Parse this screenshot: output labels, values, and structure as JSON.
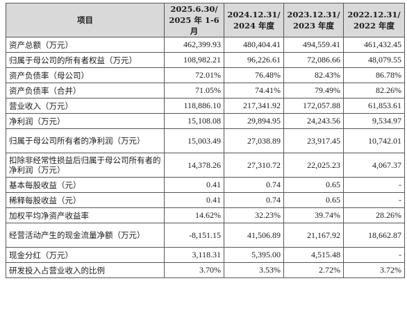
{
  "table": {
    "headers": [
      [
        "项目"
      ],
      [
        "2025.6.30/",
        "2025 年 1-6 月"
      ],
      [
        "2024.12.31/",
        "2024 年度"
      ],
      [
        "2023.12.31/",
        "2023 年度"
      ],
      [
        "2022.12.31/",
        "2022 年度"
      ]
    ],
    "rows": [
      {
        "label": "资产总额（万元）",
        "values": [
          "462,399.93",
          "480,404.41",
          "494,559.41",
          "461,432.45"
        ]
      },
      {
        "label": "归属于母公司的所有者权益（万元）",
        "values": [
          "108,982.21",
          "96,226.61",
          "72,086.66",
          "48,079.55"
        ]
      },
      {
        "label": "资产负债率（母公司）",
        "values": [
          "72.01%",
          "76.48%",
          "82.43%",
          "86.78%"
        ]
      },
      {
        "label": "资产负债率（合并）",
        "values": [
          "71.05%",
          "74.41%",
          "79.49%",
          "82.26%"
        ]
      },
      {
        "label": "营业收入（万元）",
        "values": [
          "118,886.10",
          "217,341.92",
          "172,057.88",
          "61,853.61"
        ]
      },
      {
        "label": "净利润（万元）",
        "values": [
          "15,108.08",
          "29,894.95",
          "24,243.56",
          "9,534.97"
        ]
      },
      {
        "label": "归属于母公司所有者的净利润（万元）",
        "values": [
          "15,003.49",
          "27,038.89",
          "23,917.45",
          "10,742.01"
        ]
      },
      {
        "label": "扣除非经常性损益后归属于母公司所有者的净利润（万元）",
        "values": [
          "14,378.26",
          "27,310.72",
          "22,025.23",
          "4,067.37"
        ]
      },
      {
        "label": "基本每股收益（元）",
        "values": [
          "0.41",
          "0.74",
          "0.65",
          "-"
        ]
      },
      {
        "label": "稀释每股收益（元）",
        "values": [
          "0.41",
          "0.74",
          "0.65",
          "-"
        ]
      },
      {
        "label": "加权平均净资产收益率",
        "values": [
          "14.62%",
          "32.23%",
          "39.74%",
          "28.26%"
        ]
      },
      {
        "label": "经营活动产生的现金流量净额（万元）",
        "values": [
          "-8,151.15",
          "41,506.89",
          "21,167.92",
          "18,662.87"
        ]
      },
      {
        "label": "现金分红（万元）",
        "values": [
          "3,118.31",
          "5,395.00",
          "4,515.48",
          "-"
        ]
      },
      {
        "label": "研发投入占营业收入的比例",
        "values": [
          "3.70%",
          "3.53%",
          "2.72%",
          "3.72%"
        ]
      }
    ]
  }
}
